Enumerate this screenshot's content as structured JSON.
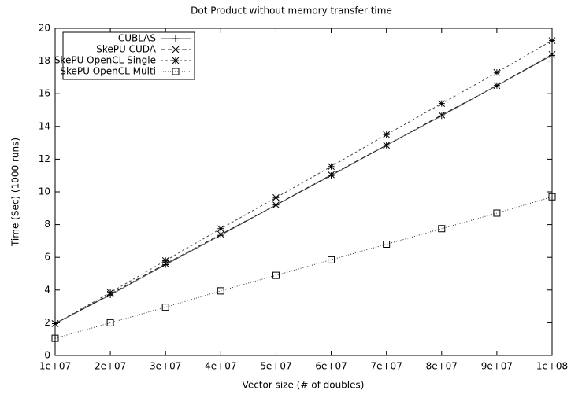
{
  "chart_data": {
    "type": "line",
    "title": "Dot Product without memory transfer time",
    "x_label": "Vector size (# of doubles)",
    "y_label": "Time (Sec) (1000 runs)",
    "x": [
      10000000,
      20000000,
      30000000,
      40000000,
      50000000,
      60000000,
      70000000,
      80000000,
      90000000,
      100000000
    ],
    "series": [
      {
        "name": "CUBLAS",
        "color": "#555555",
        "line_style": "solid",
        "marker": "plus",
        "values": [
          1.95,
          3.7,
          5.55,
          7.35,
          9.2,
          11.0,
          12.85,
          14.65,
          16.5,
          18.35
        ]
      },
      {
        "name": "SkePU CUDA",
        "color": "#222222",
        "line_style": "dashed",
        "marker": "cross",
        "values": [
          1.95,
          3.75,
          5.6,
          7.4,
          9.2,
          11.05,
          12.85,
          14.7,
          16.5,
          18.4
        ]
      },
      {
        "name": "SkePU OpenCL Single",
        "color": "#444444",
        "line_style": "dashed-fine",
        "marker": "star",
        "values": [
          1.95,
          3.85,
          5.8,
          7.75,
          9.65,
          11.55,
          13.5,
          15.4,
          17.3,
          19.25
        ]
      },
      {
        "name": "SkePU OpenCL Multi",
        "color": "#333333",
        "line_style": "dotted",
        "marker": "square",
        "values": [
          1.05,
          2.0,
          2.95,
          3.95,
          4.9,
          5.85,
          6.8,
          7.75,
          8.7,
          9.7
        ]
      }
    ],
    "xlim": [
      10000000,
      100000000
    ],
    "ylim": [
      0,
      20
    ],
    "xticks": [
      {
        "value": 10000000,
        "label": "1e+07"
      },
      {
        "value": 20000000,
        "label": "2e+07"
      },
      {
        "value": 30000000,
        "label": "3e+07"
      },
      {
        "value": 40000000,
        "label": "4e+07"
      },
      {
        "value": 50000000,
        "label": "5e+07"
      },
      {
        "value": 60000000,
        "label": "6e+07"
      },
      {
        "value": 70000000,
        "label": "7e+07"
      },
      {
        "value": 80000000,
        "label": "8e+07"
      },
      {
        "value": 90000000,
        "label": "9e+07"
      },
      {
        "value": 100000000,
        "label": "1e+08"
      }
    ],
    "yticks": [
      0,
      2,
      4,
      6,
      8,
      10,
      12,
      14,
      16,
      18,
      20
    ],
    "legend": "top-left",
    "grid": false
  }
}
